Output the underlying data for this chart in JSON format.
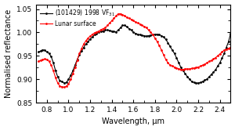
{
  "title": "",
  "xlabel": "Wavelength, μm",
  "ylabel": "Normalised reflectance",
  "xlim": [
    0.7,
    2.5
  ],
  "ylim": [
    0.85,
    1.06
  ],
  "yticks": [
    0.85,
    0.9,
    0.95,
    1.0,
    1.05
  ],
  "xticks": [
    0.8,
    1.0,
    1.2,
    1.4,
    1.6,
    1.8,
    2.0,
    2.2,
    2.4
  ],
  "legend_label_asteroid": "(101429) 1998 VF$_{31}$",
  "legend_label_lunar": "Lunar surface",
  "asteroid_color": "black",
  "lunar_color": "red",
  "background_color": "white",
  "asteroid_wavelengths": [
    0.72,
    0.74,
    0.76,
    0.78,
    0.8,
    0.82,
    0.84,
    0.86,
    0.88,
    0.9,
    0.92,
    0.94,
    0.96,
    0.98,
    1.0,
    1.02,
    1.04,
    1.06,
    1.08,
    1.1,
    1.12,
    1.14,
    1.16,
    1.18,
    1.2,
    1.22,
    1.24,
    1.26,
    1.28,
    1.3,
    1.32,
    1.34,
    1.36,
    1.38,
    1.4,
    1.42,
    1.44,
    1.46,
    1.48,
    1.5,
    1.52,
    1.54,
    1.56,
    1.58,
    1.6,
    1.62,
    1.64,
    1.66,
    1.68,
    1.7,
    1.72,
    1.74,
    1.76,
    1.78,
    1.8,
    1.82,
    1.84,
    1.86,
    1.88,
    1.9,
    1.92,
    1.94,
    1.96,
    1.98,
    2.0,
    2.02,
    2.04,
    2.06,
    2.08,
    2.1,
    2.12,
    2.14,
    2.16,
    2.18,
    2.2,
    2.22,
    2.24,
    2.26,
    2.28,
    2.3,
    2.32,
    2.34,
    2.36,
    2.38,
    2.4,
    2.42,
    2.44,
    2.46,
    2.48,
    2.5
  ],
  "asteroid_reflectance": [
    0.958,
    0.96,
    0.963,
    0.962,
    0.958,
    0.955,
    0.948,
    0.935,
    0.918,
    0.905,
    0.897,
    0.895,
    0.892,
    0.893,
    0.9,
    0.908,
    0.918,
    0.93,
    0.942,
    0.952,
    0.96,
    0.968,
    0.975,
    0.98,
    0.986,
    0.99,
    0.995,
    0.998,
    1.0,
    1.002,
    1.003,
    1.005,
    1.005,
    1.004,
    1.003,
    1.002,
    1.001,
    1.005,
    1.01,
    1.015,
    1.015,
    1.012,
    1.008,
    1.005,
    1.0,
    0.998,
    0.996,
    0.995,
    0.994,
    0.993,
    0.992,
    0.993,
    0.994,
    0.995,
    0.996,
    0.996,
    0.995,
    0.993,
    0.99,
    0.985,
    0.978,
    0.97,
    0.962,
    0.955,
    0.945,
    0.935,
    0.925,
    0.918,
    0.912,
    0.905,
    0.9,
    0.895,
    0.893,
    0.892,
    0.892,
    0.893,
    0.895,
    0.898,
    0.9,
    0.905,
    0.91,
    0.915,
    0.92,
    0.928,
    0.935,
    0.945,
    0.955,
    0.968,
    0.98,
    0.998
  ],
  "lunar_wavelengths": [
    0.72,
    0.74,
    0.76,
    0.78,
    0.8,
    0.82,
    0.84,
    0.86,
    0.88,
    0.9,
    0.92,
    0.94,
    0.96,
    0.98,
    1.0,
    1.02,
    1.04,
    1.06,
    1.08,
    1.1,
    1.12,
    1.14,
    1.16,
    1.18,
    1.2,
    1.22,
    1.24,
    1.26,
    1.28,
    1.3,
    1.32,
    1.34,
    1.36,
    1.38,
    1.4,
    1.42,
    1.44,
    1.46,
    1.48,
    1.5,
    1.52,
    1.54,
    1.56,
    1.58,
    1.6,
    1.62,
    1.64,
    1.66,
    1.68,
    1.7,
    1.72,
    1.74,
    1.76,
    1.78,
    1.8,
    1.82,
    1.84,
    1.86,
    1.88,
    1.9,
    1.92,
    1.94,
    1.96,
    1.98,
    2.0,
    2.02,
    2.04,
    2.06,
    2.08,
    2.1,
    2.12,
    2.14,
    2.16,
    2.18,
    2.2,
    2.22,
    2.24,
    2.26,
    2.28,
    2.3,
    2.32,
    2.34,
    2.36,
    2.38,
    2.4,
    2.42,
    2.44,
    2.46,
    2.48,
    2.5
  ],
  "lunar_reflectance": [
    0.938,
    0.94,
    0.942,
    0.943,
    0.942,
    0.938,
    0.93,
    0.918,
    0.903,
    0.892,
    0.885,
    0.884,
    0.883,
    0.885,
    0.89,
    0.9,
    0.912,
    0.925,
    0.94,
    0.955,
    0.965,
    0.975,
    0.982,
    0.988,
    0.992,
    0.996,
    0.999,
    1.001,
    1.003,
    1.006,
    1.008,
    1.01,
    1.015,
    1.02,
    1.025,
    1.03,
    1.035,
    1.04,
    1.04,
    1.038,
    1.035,
    1.032,
    1.03,
    1.028,
    1.025,
    1.022,
    1.02,
    1.018,
    1.015,
    1.013,
    1.01,
    1.005,
    1.0,
    0.995,
    0.988,
    0.98,
    0.972,
    0.962,
    0.952,
    0.942,
    0.935,
    0.93,
    0.928,
    0.926,
    0.924,
    0.922,
    0.921,
    0.921,
    0.922,
    0.922,
    0.922,
    0.923,
    0.924,
    0.925,
    0.926,
    0.928,
    0.93,
    0.932,
    0.935,
    0.938,
    0.94,
    0.943,
    0.946,
    0.95,
    0.954,
    0.958,
    0.962,
    0.964,
    0.966,
    0.968
  ]
}
